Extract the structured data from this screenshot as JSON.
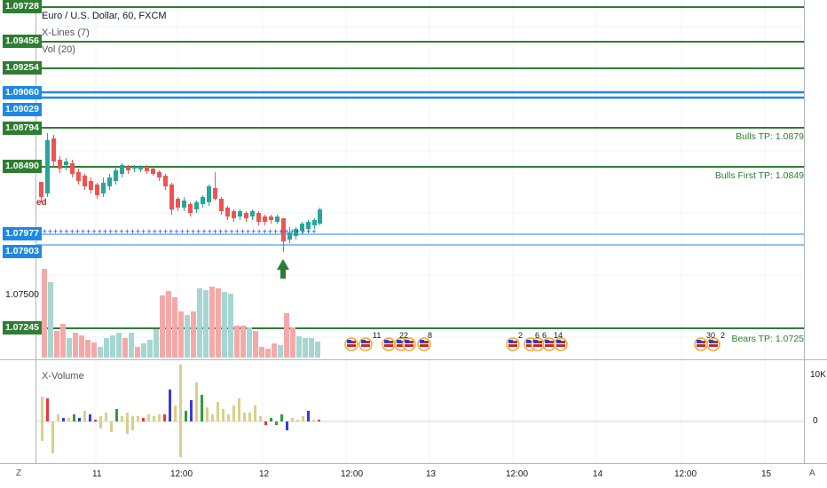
{
  "chart": {
    "title": "Euro / U.S. Dollar, 60, FXCM",
    "indicators": [
      "X-Lines (7)",
      "Vol (20)"
    ],
    "truncated_label": "ed",
    "colors": {
      "bull": "#26a69a",
      "bear": "#ef5350",
      "green_line": "#2e7d32",
      "blue_line": "#1e88e5",
      "vol_bull": "#a5d6d2",
      "vol_bear": "#f4a9a8"
    }
  },
  "price_axis": {
    "labels": [
      {
        "text": "1.09728",
        "style": "green"
      },
      {
        "text": "1.09456",
        "style": "green"
      },
      {
        "text": "1.09254",
        "style": "green"
      },
      {
        "text": "1.09060",
        "style": "blue"
      },
      {
        "text": "1.09029",
        "style": "blue"
      },
      {
        "text": "1.08794",
        "style": "green"
      },
      {
        "text": "1.08490",
        "style": "green"
      },
      {
        "text": "1.07977",
        "style": "blue"
      },
      {
        "text": "1.07903",
        "style": "blue"
      },
      {
        "text": "1.07500",
        "style": "plain"
      },
      {
        "text": "1.07245",
        "style": "green"
      }
    ]
  },
  "levels": [
    {
      "label": "Bulls TP: 1.0879"
    },
    {
      "label": "Bulls First TP: 1.0849"
    },
    {
      "label": "Bears TP: 1.0725"
    }
  ],
  "events": [
    {
      "num": ""
    },
    {
      "num": "11"
    },
    {
      "num": ""
    },
    {
      "num": "22"
    },
    {
      "num": ""
    },
    {
      "num": "8"
    },
    {
      "num": "2"
    },
    {
      "num": "6"
    },
    {
      "num": "6"
    },
    {
      "num": "14"
    },
    {
      "num": "30"
    },
    {
      "num": "2"
    }
  ],
  "xvolume": {
    "title": "X-Volume",
    "axis": [
      "10K",
      "0"
    ]
  },
  "time_axis": {
    "labels": [
      "11",
      "12:00",
      "12",
      "12:00",
      "13",
      "12:00",
      "14",
      "12:00",
      "15"
    ]
  },
  "corners": {
    "left": "Z",
    "right": "A"
  }
}
